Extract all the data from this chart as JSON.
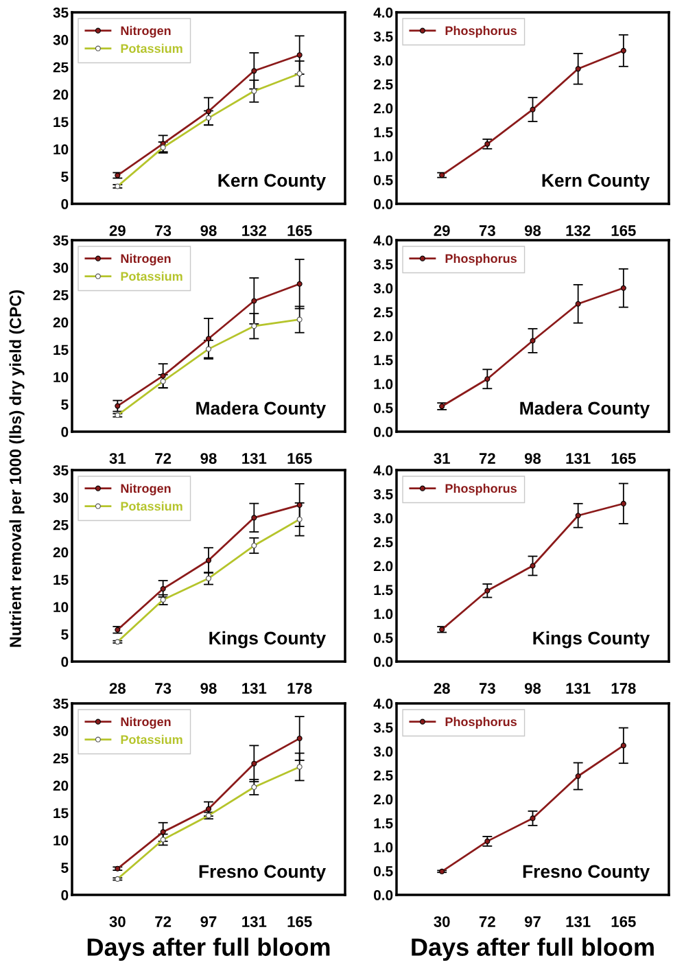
{
  "chart_data": [
    {
      "type": "line",
      "ylabel": "Nutrient removal per 1000 (lbs) dry yield (CPC)",
      "categories": [
        "29",
        "73",
        "98",
        "132",
        "165"
      ],
      "ylim": [
        0,
        35
      ],
      "yticks": [
        0,
        5,
        10,
        15,
        20,
        25,
        30,
        35
      ],
      "legend": "top left",
      "marker": "circle",
      "annotations": [
        "Kern County"
      ],
      "series": [
        {
          "name": "Nitrogen",
          "color": "#8b1a1a",
          "values": [
            5.2,
            11.0,
            16.9,
            24.3,
            27.2
          ],
          "errors": [
            0.5,
            1.5,
            2.5,
            3.3,
            3.5
          ]
        },
        {
          "name": "Potassium",
          "color": "#b5c42b",
          "values": [
            3.2,
            10.3,
            15.7,
            20.6,
            23.8
          ],
          "errors": [
            0.3,
            1.0,
            1.3,
            2.0,
            2.3
          ]
        }
      ]
    },
    {
      "type": "line",
      "categories": [
        "29",
        "73",
        "98",
        "132",
        "165"
      ],
      "ylim": [
        0,
        4
      ],
      "yticks": [
        {
          "value": 0,
          "label": "0.0"
        },
        {
          "value": 0.5,
          "label": "0.5"
        },
        {
          "value": 1,
          "label": "1.0"
        },
        {
          "value": 1.5,
          "label": "1.5"
        },
        {
          "value": 2,
          "label": "2.0"
        },
        {
          "value": 2.5,
          "label": "2.5"
        },
        {
          "value": 3,
          "label": "3.0"
        },
        {
          "value": 3.5,
          "label": "3.5"
        },
        {
          "value": 4,
          "label": "4.0"
        }
      ],
      "legend": "top left",
      "marker": "circle",
      "annotations": [
        "Kern County"
      ],
      "series": [
        {
          "name": "Phosphorus",
          "color": "#8b1a1a",
          "values": [
            0.6,
            1.25,
            1.97,
            2.82,
            3.2
          ],
          "errors": [
            0.05,
            0.1,
            0.25,
            0.32,
            0.33
          ]
        }
      ]
    },
    {
      "type": "line",
      "categories": [
        "31",
        "72",
        "98",
        "131",
        "165"
      ],
      "ylim": [
        0,
        35
      ],
      "yticks": [
        0,
        5,
        10,
        15,
        20,
        25,
        30,
        35
      ],
      "legend": "top left",
      "marker": "circle",
      "annotations": [
        "Madera County"
      ],
      "series": [
        {
          "name": "Nitrogen",
          "color": "#8b1a1a",
          "values": [
            4.7,
            10.2,
            17.0,
            23.9,
            27.0
          ],
          "errors": [
            1.0,
            2.2,
            3.7,
            4.2,
            4.5
          ]
        },
        {
          "name": "Potassium",
          "color": "#b5c42b",
          "values": [
            3.0,
            9.2,
            15.1,
            19.3,
            20.5
          ],
          "errors": [
            0.3,
            1.2,
            1.6,
            2.3,
            2.4
          ]
        }
      ]
    },
    {
      "type": "line",
      "categories": [
        "31",
        "72",
        "98",
        "131",
        "165"
      ],
      "ylim": [
        0,
        4
      ],
      "yticks": [
        {
          "value": 0,
          "label": "0.0"
        },
        {
          "value": 0.5,
          "label": "0.5"
        },
        {
          "value": 1,
          "label": "1.0"
        },
        {
          "value": 1.5,
          "label": "1.5"
        },
        {
          "value": 2,
          "label": "2.0"
        },
        {
          "value": 2.5,
          "label": "2.5"
        },
        {
          "value": 3,
          "label": "3.0"
        },
        {
          "value": 3.5,
          "label": "3.5"
        },
        {
          "value": 4,
          "label": "4.0"
        }
      ],
      "legend": "top left",
      "marker": "circle",
      "annotations": [
        "Madera County"
      ],
      "series": [
        {
          "name": "Phosphorus",
          "color": "#8b1a1a",
          "values": [
            0.53,
            1.1,
            1.9,
            2.67,
            3.0
          ],
          "errors": [
            0.07,
            0.2,
            0.25,
            0.4,
            0.4
          ]
        }
      ]
    },
    {
      "type": "line",
      "categories": [
        "28",
        "73",
        "98",
        "131",
        "178"
      ],
      "ylim": [
        0,
        35
      ],
      "yticks": [
        0,
        5,
        10,
        15,
        20,
        25,
        30,
        35
      ],
      "legend": "top left",
      "marker": "circle",
      "annotations": [
        "Kings County"
      ],
      "series": [
        {
          "name": "Nitrogen",
          "color": "#8b1a1a",
          "values": [
            5.8,
            13.3,
            18.5,
            26.3,
            28.6
          ],
          "errors": [
            0.6,
            1.5,
            2.3,
            2.6,
            3.9
          ]
        },
        {
          "name": "Potassium",
          "color": "#b5c42b",
          "values": [
            3.6,
            11.3,
            15.2,
            21.2,
            26.0
          ],
          "errors": [
            0.2,
            0.9,
            1.1,
            1.4,
            3.0
          ]
        }
      ]
    },
    {
      "type": "line",
      "categories": [
        "28",
        "73",
        "98",
        "131",
        "178"
      ],
      "ylim": [
        0,
        4
      ],
      "yticks": [
        {
          "value": 0,
          "label": "0.0"
        },
        {
          "value": 0.5,
          "label": "0.5"
        },
        {
          "value": 1,
          "label": "1.0"
        },
        {
          "value": 1.5,
          "label": "1.5"
        },
        {
          "value": 2,
          "label": "2.0"
        },
        {
          "value": 2.5,
          "label": "2.5"
        },
        {
          "value": 3,
          "label": "3.0"
        },
        {
          "value": 3.5,
          "label": "3.5"
        },
        {
          "value": 4,
          "label": "4.0"
        }
      ],
      "legend": "top left",
      "marker": "circle",
      "annotations": [
        "Kings County"
      ],
      "series": [
        {
          "name": "Phosphorus",
          "color": "#8b1a1a",
          "values": [
            0.67,
            1.48,
            2.0,
            3.05,
            3.3
          ],
          "errors": [
            0.06,
            0.14,
            0.2,
            0.25,
            0.42
          ]
        }
      ]
    },
    {
      "type": "line",
      "xlabel": "Days after full bloom",
      "categories": [
        "30",
        "72",
        "97",
        "131",
        "165"
      ],
      "ylim": [
        0,
        35
      ],
      "yticks": [
        0,
        5,
        10,
        15,
        20,
        25,
        30,
        35
      ],
      "legend": "top left",
      "marker": "circle",
      "annotations": [
        "Fresno County"
      ],
      "series": [
        {
          "name": "Nitrogen",
          "color": "#8b1a1a",
          "values": [
            4.8,
            11.5,
            15.7,
            24.0,
            28.6
          ],
          "errors": [
            0.3,
            1.7,
            1.3,
            3.3,
            4.0
          ]
        },
        {
          "name": "Potassium",
          "color": "#b5c42b",
          "values": [
            2.9,
            10.1,
            14.5,
            19.7,
            23.4
          ],
          "errors": [
            0.2,
            1.0,
            0.6,
            1.4,
            2.5
          ]
        }
      ]
    },
    {
      "type": "line",
      "xlabel": "Days after full bloom",
      "categories": [
        "30",
        "72",
        "97",
        "131",
        "165"
      ],
      "ylim": [
        0,
        4
      ],
      "yticks": [
        {
          "value": 0,
          "label": "0.0"
        },
        {
          "value": 0.5,
          "label": "0.5"
        },
        {
          "value": 1,
          "label": "1.0"
        },
        {
          "value": 1.5,
          "label": "1.5"
        },
        {
          "value": 2,
          "label": "2.0"
        },
        {
          "value": 2.5,
          "label": "2.5"
        },
        {
          "value": 3,
          "label": "3.0"
        },
        {
          "value": 3.5,
          "label": "3.5"
        },
        {
          "value": 4,
          "label": "4.0"
        }
      ],
      "legend": "top left",
      "marker": "circle",
      "annotations": [
        "Fresno County"
      ],
      "series": [
        {
          "name": "Phosphorus",
          "color": "#8b1a1a",
          "values": [
            0.49,
            1.12,
            1.6,
            2.48,
            3.12
          ],
          "errors": [
            0.02,
            0.1,
            0.15,
            0.28,
            0.37
          ]
        }
      ]
    }
  ]
}
